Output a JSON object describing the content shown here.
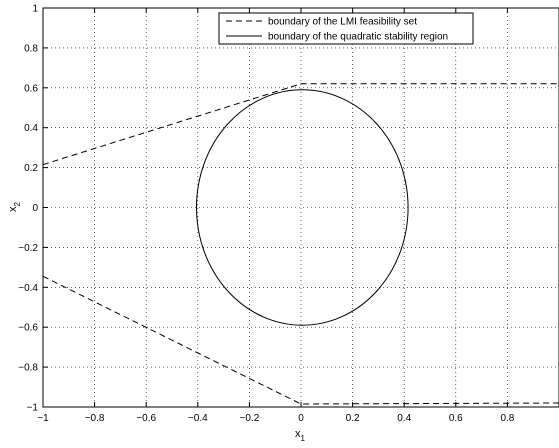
{
  "chart_data": {
    "type": "line",
    "title": "",
    "xlabel": "x",
    "xlabel_sub": "1",
    "ylabel": "x",
    "ylabel_sub": "2",
    "xlim": [
      -1,
      1
    ],
    "ylim": [
      -1,
      1
    ],
    "xticks": [
      -1,
      -0.8,
      -0.6,
      -0.4,
      -0.2,
      0,
      0.2,
      0.4,
      0.6,
      0.8
    ],
    "xtick_labels": [
      "−1",
      "−0.8",
      "−0.6",
      "−0.4",
      "−0.2",
      "0",
      "0.2",
      "0.4",
      "0.6",
      "0.8"
    ],
    "yticks": [
      -1,
      -0.8,
      -0.6,
      -0.4,
      -0.2,
      0,
      0.2,
      0.4,
      0.6,
      0.8,
      1
    ],
    "ytick_labels": [
      "−1",
      "−0.8",
      "−0.6",
      "−0.4",
      "−0.2",
      "0",
      "0.2",
      "0.4",
      "0.6",
      "0.8",
      "1"
    ],
    "grid": true,
    "legend_position": "top-center",
    "series": [
      {
        "name": "boundary of the LMI feasibility set",
        "style": "dashed",
        "color": "#000000",
        "segments": [
          [
            [
              -1,
              0.215
            ],
            [
              0,
              0.62
            ],
            [
              1,
              0.62
            ]
          ],
          [
            [
              -1,
              -0.345
            ],
            [
              0,
              -0.985
            ],
            [
              1,
              -0.98
            ]
          ]
        ]
      },
      {
        "name": "boundary of the quadratic stability region",
        "style": "solid",
        "color": "#000000",
        "ellipse": {
          "cx": 0.005,
          "cy": 0.0,
          "rx": 0.41,
          "ry": 0.59
        }
      }
    ]
  }
}
